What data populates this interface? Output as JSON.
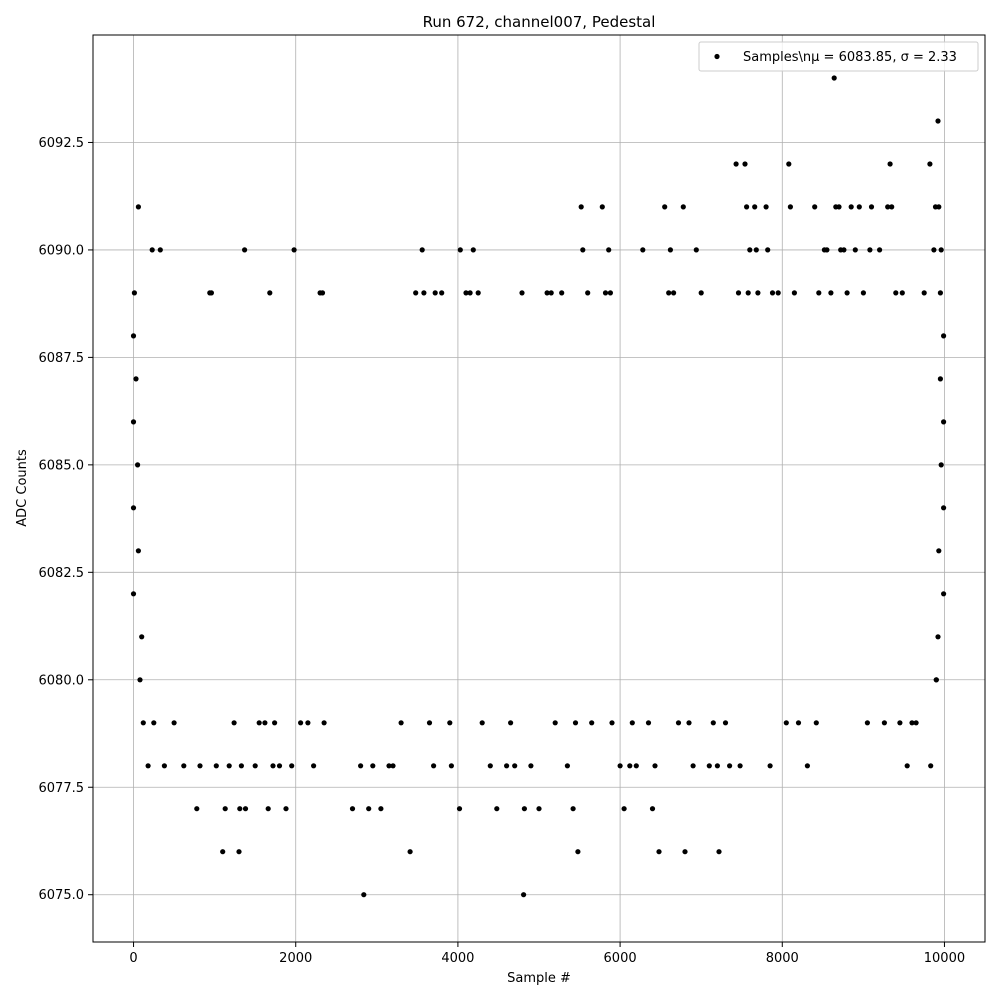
{
  "chart_data": {
    "type": "scatter",
    "title": "Run 672, channel007, Pedestal",
    "xlabel": "Sample #",
    "ylabel": "ADC Counts",
    "xlim": [
      -500,
      10500
    ],
    "ylim": [
      6073.9,
      6095.0
    ],
    "xticks": [
      0,
      2000,
      4000,
      6000,
      8000,
      10000
    ],
    "xtick_labels": [
      "0",
      "2000",
      "4000",
      "6000",
      "8000",
      "10000"
    ],
    "yticks": [
      6075.0,
      6077.5,
      6080.0,
      6082.5,
      6085.0,
      6087.5,
      6090.0,
      6092.5
    ],
    "ytick_labels": [
      "6075.0",
      "6077.5",
      "6080.0",
      "6082.5",
      "6085.0",
      "6087.5",
      "6090.0",
      "6092.5"
    ],
    "grid": true,
    "legend_position": "top-right",
    "marker_color": "#000000",
    "series": [
      {
        "name": "Samples\\n$\\mu$ = 6083.85, $\\sigma$ = 2.33",
        "name_display": "Samples\\nμ = 6083.85, σ = 2.33",
        "points": [
          [
            0,
            6088
          ],
          [
            0,
            6086
          ],
          [
            0,
            6084
          ],
          [
            0,
            6082
          ],
          [
            10,
            6089
          ],
          [
            30,
            6087
          ],
          [
            50,
            6085
          ],
          [
            60,
            6083
          ],
          [
            80,
            6080
          ],
          [
            100,
            6081
          ],
          [
            60,
            6091
          ],
          [
            120,
            6079
          ],
          [
            180,
            6078
          ],
          [
            230,
            6090
          ],
          [
            330,
            6090
          ],
          [
            250,
            6079
          ],
          [
            380,
            6078
          ],
          [
            500,
            6079
          ],
          [
            620,
            6078
          ],
          [
            780,
            6077
          ],
          [
            820,
            6078
          ],
          [
            940,
            6089
          ],
          [
            960,
            6089
          ],
          [
            1020,
            6078
          ],
          [
            1100,
            6076
          ],
          [
            1130,
            6077
          ],
          [
            1180,
            6078
          ],
          [
            1240,
            6079
          ],
          [
            1300,
            6076
          ],
          [
            1310,
            6077
          ],
          [
            1330,
            6078
          ],
          [
            1370,
            6090
          ],
          [
            1380,
            6077
          ],
          [
            1500,
            6078
          ],
          [
            1550,
            6079
          ],
          [
            1620,
            6079
          ],
          [
            1660,
            6077
          ],
          [
            1680,
            6089
          ],
          [
            1720,
            6078
          ],
          [
            1740,
            6079
          ],
          [
            1800,
            6078
          ],
          [
            1880,
            6077
          ],
          [
            1950,
            6078
          ],
          [
            1980,
            6090
          ],
          [
            2060,
            6079
          ],
          [
            2150,
            6079
          ],
          [
            2220,
            6078
          ],
          [
            2300,
            6089
          ],
          [
            2330,
            6089
          ],
          [
            2350,
            6079
          ],
          [
            2700,
            6077
          ],
          [
            2800,
            6078
          ],
          [
            2840,
            6075
          ],
          [
            2900,
            6077
          ],
          [
            2950,
            6078
          ],
          [
            3050,
            6077
          ],
          [
            3150,
            6078
          ],
          [
            3200,
            6078
          ],
          [
            3300,
            6079
          ],
          [
            3410,
            6076
          ],
          [
            3480,
            6089
          ],
          [
            3560,
            6090
          ],
          [
            3580,
            6089
          ],
          [
            3650,
            6079
          ],
          [
            3700,
            6078
          ],
          [
            3720,
            6089
          ],
          [
            3800,
            6089
          ],
          [
            3900,
            6079
          ],
          [
            3920,
            6078
          ],
          [
            4030,
            6090
          ],
          [
            4020,
            6077
          ],
          [
            4100,
            6089
          ],
          [
            4150,
            6089
          ],
          [
            4190,
            6090
          ],
          [
            4250,
            6089
          ],
          [
            4300,
            6079
          ],
          [
            4400,
            6078
          ],
          [
            4480,
            6077
          ],
          [
            4600,
            6078
          ],
          [
            4650,
            6079
          ],
          [
            4700,
            6078
          ],
          [
            4790,
            6089
          ],
          [
            4810,
            6075
          ],
          [
            4820,
            6077
          ],
          [
            4900,
            6078
          ],
          [
            5000,
            6077
          ],
          [
            5100,
            6089
          ],
          [
            5150,
            6089
          ],
          [
            5200,
            6079
          ],
          [
            5280,
            6089
          ],
          [
            5350,
            6078
          ],
          [
            5420,
            6077
          ],
          [
            5450,
            6079
          ],
          [
            5480,
            6076
          ],
          [
            5520,
            6091
          ],
          [
            5540,
            6090
          ],
          [
            5600,
            6089
          ],
          [
            5650,
            6079
          ],
          [
            5780,
            6091
          ],
          [
            5820,
            6089
          ],
          [
            5860,
            6090
          ],
          [
            5880,
            6089
          ],
          [
            5900,
            6079
          ],
          [
            6000,
            6078
          ],
          [
            6050,
            6077
          ],
          [
            6120,
            6078
          ],
          [
            6150,
            6079
          ],
          [
            6200,
            6078
          ],
          [
            6280,
            6090
          ],
          [
            6350,
            6079
          ],
          [
            6400,
            6077
          ],
          [
            6430,
            6078
          ],
          [
            6480,
            6076
          ],
          [
            6550,
            6091
          ],
          [
            6600,
            6089
          ],
          [
            6620,
            6090
          ],
          [
            6660,
            6089
          ],
          [
            6720,
            6079
          ],
          [
            6780,
            6091
          ],
          [
            6800,
            6076
          ],
          [
            6850,
            6079
          ],
          [
            6900,
            6078
          ],
          [
            6940,
            6090
          ],
          [
            7000,
            6089
          ],
          [
            7100,
            6078
          ],
          [
            7150,
            6079
          ],
          [
            7200,
            6078
          ],
          [
            7220,
            6076
          ],
          [
            7300,
            6079
          ],
          [
            7350,
            6078
          ],
          [
            7430,
            6092
          ],
          [
            7460,
            6089
          ],
          [
            7480,
            6078
          ],
          [
            7540,
            6092
          ],
          [
            7560,
            6091
          ],
          [
            7580,
            6089
          ],
          [
            7600,
            6090
          ],
          [
            7660,
            6091
          ],
          [
            7680,
            6090
          ],
          [
            7700,
            6089
          ],
          [
            7800,
            6091
          ],
          [
            7820,
            6090
          ],
          [
            7850,
            6078
          ],
          [
            7880,
            6089
          ],
          [
            7950,
            6089
          ],
          [
            8050,
            6079
          ],
          [
            8080,
            6092
          ],
          [
            8100,
            6091
          ],
          [
            8150,
            6089
          ],
          [
            8200,
            6079
          ],
          [
            8310,
            6078
          ],
          [
            8400,
            6091
          ],
          [
            8420,
            6079
          ],
          [
            8450,
            6089
          ],
          [
            8520,
            6090
          ],
          [
            8550,
            6090
          ],
          [
            8600,
            6089
          ],
          [
            8640,
            6094
          ],
          [
            8660,
            6091
          ],
          [
            8700,
            6091
          ],
          [
            8720,
            6090
          ],
          [
            8760,
            6090
          ],
          [
            8800,
            6089
          ],
          [
            8850,
            6091
          ],
          [
            8900,
            6090
          ],
          [
            8950,
            6091
          ],
          [
            9000,
            6089
          ],
          [
            9050,
            6079
          ],
          [
            9080,
            6090
          ],
          [
            9100,
            6091
          ],
          [
            9200,
            6090
          ],
          [
            9260,
            6079
          ],
          [
            9300,
            6091
          ],
          [
            9330,
            6092
          ],
          [
            9350,
            6091
          ],
          [
            9400,
            6089
          ],
          [
            9450,
            6079
          ],
          [
            9480,
            6089
          ],
          [
            9540,
            6078
          ],
          [
            9600,
            6079
          ],
          [
            9650,
            6079
          ],
          [
            9750,
            6089
          ],
          [
            9820,
            6092
          ],
          [
            9830,
            6078
          ],
          [
            9870,
            6090
          ],
          [
            9890,
            6091
          ],
          [
            9900,
            6080
          ],
          [
            9920,
            6093
          ],
          [
            9930,
            6091
          ],
          [
            9950,
            6089
          ],
          [
            9960,
            6090
          ],
          [
            9990,
            6088
          ],
          [
            9990,
            6086
          ],
          [
            9990,
            6084
          ],
          [
            9990,
            6082
          ],
          [
            9920,
            6081
          ],
          [
            9950,
            6087
          ],
          [
            9960,
            6085
          ],
          [
            9930,
            6083
          ],
          [
            9900,
            6080
          ]
        ]
      }
    ]
  }
}
